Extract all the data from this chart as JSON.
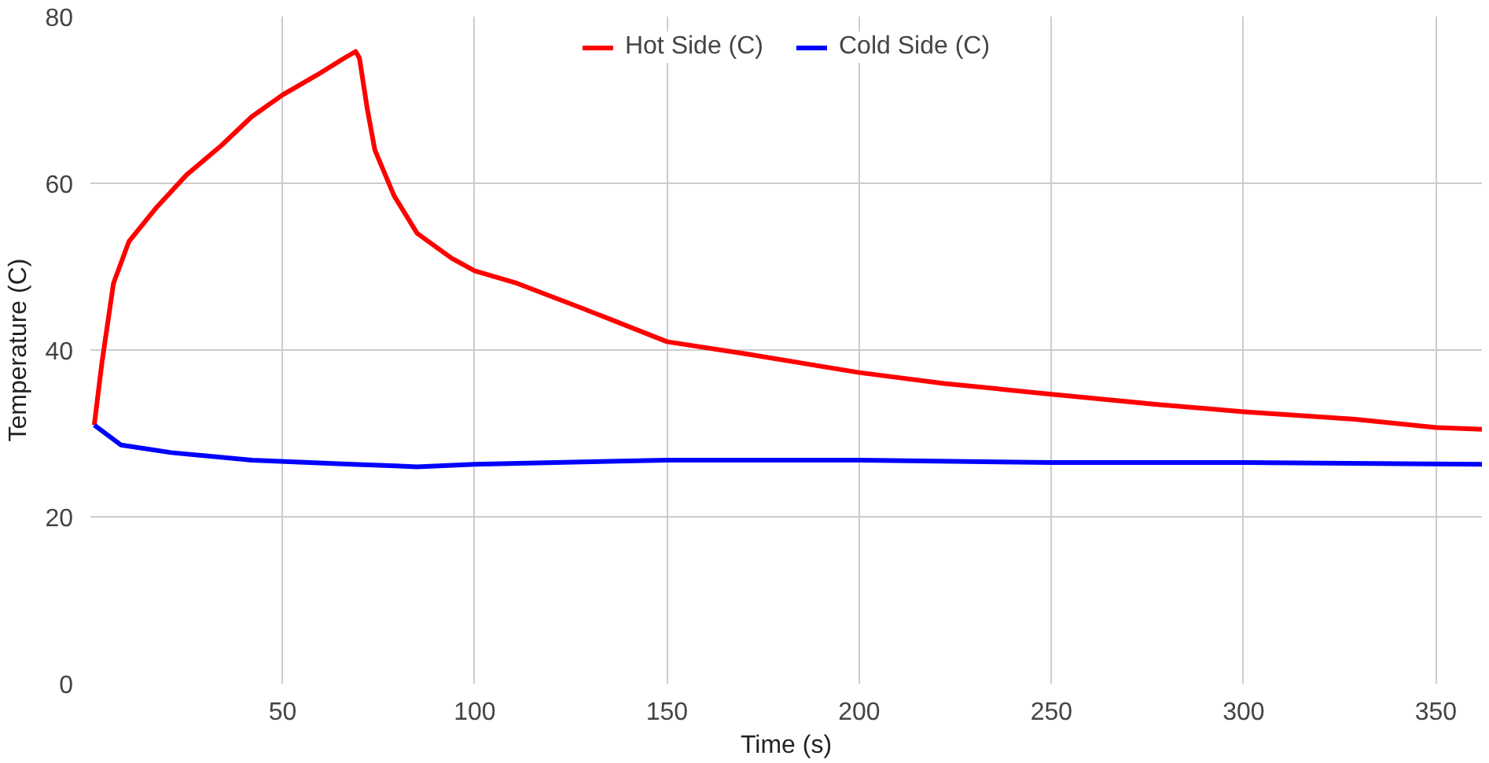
{
  "chart_data": {
    "type": "line",
    "xlabel": "Time (s)",
    "ylabel": "Temperature (C)",
    "xlim": [
      0,
      362
    ],
    "xticks": [
      50,
      100,
      150,
      200,
      250,
      300,
      350
    ],
    "ylim": [
      0,
      80
    ],
    "yticks": [
      0,
      20,
      40,
      60,
      80
    ],
    "grid": true,
    "legend": "top",
    "marker": "none",
    "line_style": "solid",
    "series": [
      {
        "name": "Hot Side (C)",
        "color": "#ff0000",
        "x": [
          1,
          3,
          6,
          10,
          17,
          25,
          34,
          42,
          50,
          59,
          66,
          69,
          70,
          72,
          74,
          79,
          85,
          94,
          100,
          111,
          128,
          150,
          171,
          200,
          222,
          250,
          277,
          300,
          329,
          350,
          362
        ],
        "values": [
          31,
          38.5,
          48,
          53,
          57,
          61,
          64.5,
          68,
          70.6,
          73,
          75,
          75.8,
          75,
          69,
          64,
          58.5,
          54,
          51,
          49.5,
          48,
          45,
          41,
          39.5,
          37.3,
          36,
          34.7,
          33.5,
          32.6,
          31.7,
          30.7,
          30.5
        ]
      },
      {
        "name": "Cold Side (C)",
        "color": "#0000ff",
        "x": [
          1,
          8,
          21,
          42,
          68,
          85,
          100,
          150,
          200,
          250,
          300,
          362
        ],
        "values": [
          31,
          28.6,
          27.7,
          26.8,
          26.3,
          26,
          26.3,
          26.8,
          26.8,
          26.5,
          26.5,
          26.3
        ]
      }
    ]
  }
}
